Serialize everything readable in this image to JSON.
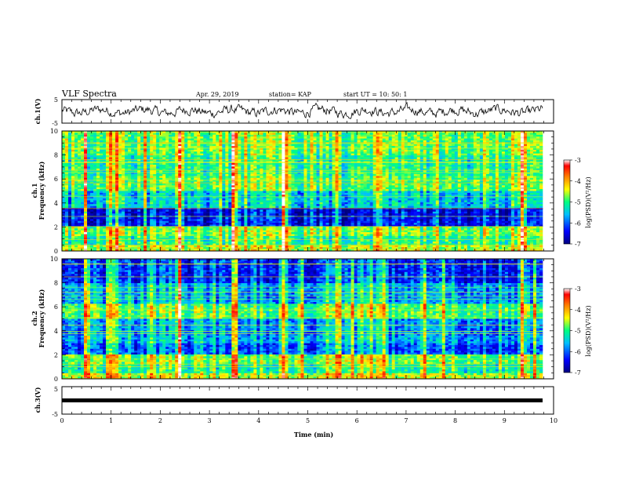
{
  "header": {
    "title": "VLF Spectra",
    "date": "Apr. 29, 2019",
    "station": "station= KAP",
    "start": "start  UT  =   10: 50: 1"
  },
  "chart_data": {
    "type": "heatmap",
    "xlabel": "Time  (min)",
    "xlim": [
      0,
      10
    ],
    "x_ticks": [
      "0",
      "1",
      "2",
      "3",
      "4",
      "5",
      "6",
      "7",
      "8",
      "9",
      "10"
    ],
    "panels": [
      {
        "id": "ch1-wave",
        "type": "line",
        "ylabel": "ch.1(V)",
        "ylim": [
          -5,
          5
        ],
        "y_ticks": [
          "5",
          "-5"
        ],
        "color": "#000000"
      },
      {
        "id": "ch1-spec",
        "type": "heatmap",
        "ylabel_top": "ch.1",
        "ylabel": "Frequency  (kHz)",
        "ylim": [
          0,
          10
        ],
        "y_ticks": [
          "0",
          "2",
          "4",
          "6",
          "8",
          "10"
        ]
      },
      {
        "id": "ch2-spec",
        "type": "heatmap",
        "ylabel_top": "ch.2",
        "ylabel": "Frequency  (kHz)",
        "ylim": [
          0,
          10
        ],
        "y_ticks": [
          "0",
          "2",
          "4",
          "6",
          "8",
          "10"
        ]
      },
      {
        "id": "ch3-wave",
        "type": "line",
        "ylabel": "ch.3(V)",
        "ylim": [
          -5,
          5
        ],
        "y_ticks": [
          "5",
          "-5"
        ],
        "constant_value": 0,
        "color": "#000000"
      }
    ],
    "colorbar": {
      "label": "log(PSD)(V²/Hz)",
      "range": [
        -7,
        -3
      ],
      "ticks": [
        "-3",
        "-4",
        "-5",
        "-6",
        "-7"
      ],
      "colors": [
        "#00007f",
        "#0000ff",
        "#00bfff",
        "#00ff80",
        "#ffff00",
        "#ff8000",
        "#ff0000",
        "#ffffff"
      ]
    },
    "burst_minutes": [
      0.45,
      0.98,
      1.07,
      2.35,
      2.38,
      3.45,
      3.5,
      4.45,
      4.5,
      6.42,
      9.3,
      9.35
    ]
  }
}
